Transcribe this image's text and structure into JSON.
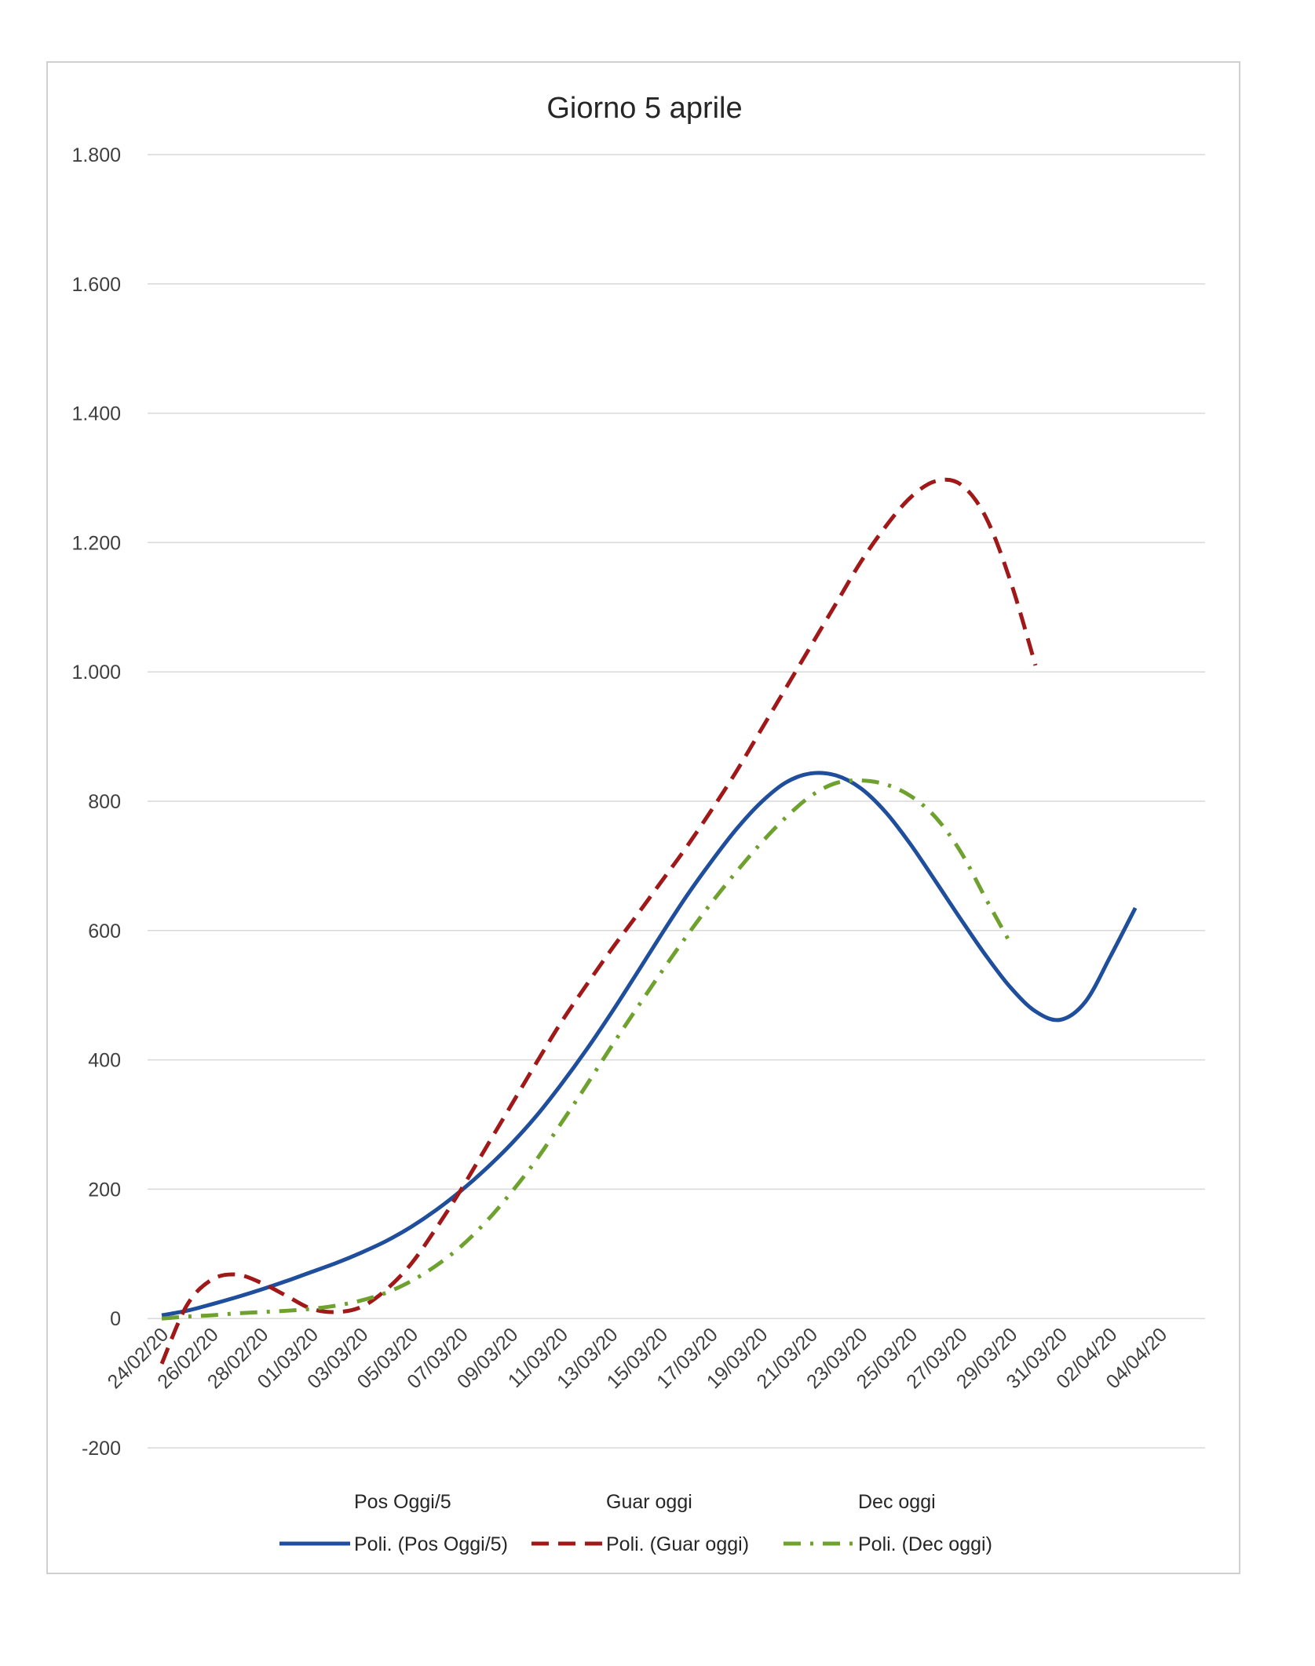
{
  "chart_data": {
    "type": "line",
    "title": "Giorno 5 aprile",
    "xlabel": "",
    "ylabel": "",
    "ylim": [
      -200,
      1800
    ],
    "y_ticks": [
      {
        "value": -200,
        "label": "-200"
      },
      {
        "value": 0,
        "label": "0"
      },
      {
        "value": 200,
        "label": "200"
      },
      {
        "value": 400,
        "label": "400"
      },
      {
        "value": 600,
        "label": "600"
      },
      {
        "value": 800,
        "label": "800"
      },
      {
        "value": 1000,
        "label": "1.000"
      },
      {
        "value": 1200,
        "label": "1.200"
      },
      {
        "value": 1400,
        "label": "1.400"
      },
      {
        "value": 1600,
        "label": "1.600"
      },
      {
        "value": 1800,
        "label": "1.800"
      }
    ],
    "grid": true,
    "x_tick_labels": [
      "24/02/20",
      "26/02/20",
      "28/02/20",
      "01/03/20",
      "03/03/20",
      "05/03/20",
      "07/03/20",
      "09/03/20",
      "11/03/20",
      "13/03/20",
      "15/03/20",
      "17/03/20",
      "19/03/20",
      "21/03/20",
      "23/03/20",
      "25/03/20",
      "27/03/20",
      "29/03/20",
      "31/03/20",
      "02/04/20",
      "04/04/20"
    ],
    "x": [
      "24/02/20",
      "25/02/20",
      "26/02/20",
      "27/02/20",
      "28/02/20",
      "29/02/20",
      "01/03/20",
      "02/03/20",
      "03/03/20",
      "04/03/20",
      "05/03/20",
      "06/03/20",
      "07/03/20",
      "08/03/20",
      "09/03/20",
      "10/03/20",
      "11/03/20",
      "12/03/20",
      "13/03/20",
      "14/03/20",
      "15/03/20",
      "16/03/20",
      "17/03/20",
      "18/03/20",
      "19/03/20",
      "20/03/20",
      "21/03/20",
      "22/03/20",
      "23/03/20",
      "24/03/20",
      "25/03/20",
      "26/03/20",
      "27/03/20",
      "28/03/20",
      "29/03/20",
      "30/03/20",
      "31/03/20",
      "01/04/20",
      "02/04/20",
      "03/04/20",
      "04/04/20",
      "05/04/20"
    ],
    "legend_series_only": [
      "Pos Oggi/5",
      "Guar oggi",
      "Dec oggi"
    ],
    "legend_position": "bottom",
    "series": [
      {
        "name": "Poli. (Pos Oggi/5)",
        "color": "#1f4e9c",
        "dash": "solid",
        "values": [
          5,
          12,
          22,
          33,
          45,
          58,
          72,
          86,
          102,
          120,
          142,
          168,
          198,
          232,
          270,
          313,
          362,
          415,
          472,
          532,
          593,
          652,
          706,
          756,
          798,
          829,
          843,
          840,
          820,
          783,
          733,
          676,
          618,
          562,
          512,
          475,
          462,
          490,
          560,
          635,
          null,
          null
        ]
      },
      {
        "name": "Poli. (Guar oggi)",
        "color": "#a01818",
        "dash": "dashed",
        "values": [
          -70,
          20,
          60,
          68,
          55,
          35,
          15,
          10,
          18,
          45,
          85,
          140,
          200,
          265,
          330,
          395,
          458,
          515,
          570,
          622,
          675,
          728,
          785,
          845,
          910,
          975,
          1040,
          1105,
          1170,
          1225,
          1270,
          1295,
          1290,
          1240,
          1140,
          1010,
          null,
          null,
          null,
          null,
          null,
          null
        ]
      },
      {
        "name": "Poli. (Dec oggi)",
        "color": "#6ea12e",
        "dash": "dashdot",
        "values": [
          0,
          3,
          5,
          8,
          10,
          12,
          15,
          20,
          28,
          40,
          58,
          82,
          112,
          150,
          195,
          245,
          302,
          360,
          420,
          478,
          535,
          590,
          642,
          690,
          735,
          775,
          808,
          828,
          832,
          826,
          808,
          775,
          722,
          650,
          580,
          null,
          null,
          null,
          null,
          null,
          null,
          null
        ]
      }
    ]
  }
}
